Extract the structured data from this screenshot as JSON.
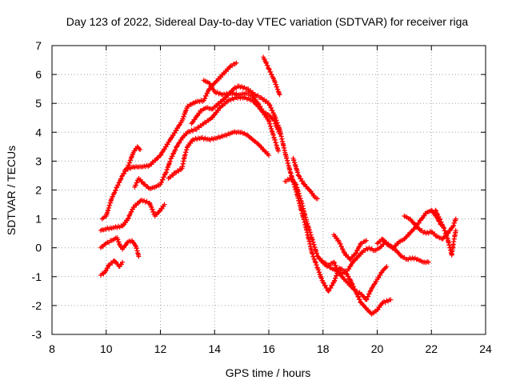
{
  "chart_data": {
    "type": "scatter",
    "title": "Day 123 of 2022, Sidereal Day-to-day VTEC variation (SDTVAR) for receiver riga",
    "xlabel": "GPS time / hours",
    "ylabel": "SDTVAR / TECUs",
    "xlim": [
      8,
      24
    ],
    "ylim": [
      -3,
      7
    ],
    "xticks": [
      8,
      10,
      12,
      14,
      16,
      18,
      20,
      22,
      24
    ],
    "yticks": [
      -3,
      -2,
      -1,
      0,
      1,
      2,
      3,
      4,
      5,
      6,
      7
    ],
    "grid": true,
    "marker": "+",
    "color": "#ff0000",
    "series": [
      {
        "name": "track-1",
        "points": [
          [
            9.85,
            1.0
          ],
          [
            10.0,
            1.1
          ],
          [
            10.2,
            1.7
          ],
          [
            10.4,
            2.1
          ],
          [
            10.6,
            2.5
          ],
          [
            10.8,
            2.8
          ],
          [
            11.0,
            3.3
          ],
          [
            11.15,
            3.5
          ],
          [
            11.25,
            3.4
          ]
        ]
      },
      {
        "name": "track-2",
        "points": [
          [
            9.8,
            0.6
          ],
          [
            10.0,
            0.65
          ],
          [
            10.3,
            0.7
          ],
          [
            10.6,
            0.75
          ],
          [
            10.8,
            1.0
          ],
          [
            11.0,
            1.4
          ],
          [
            11.3,
            1.65
          ],
          [
            11.6,
            1.55
          ],
          [
            11.8,
            1.1
          ],
          [
            12.0,
            1.3
          ],
          [
            12.15,
            1.5
          ]
        ]
      },
      {
        "name": "track-3",
        "points": [
          [
            9.8,
            0.0
          ],
          [
            10.0,
            0.15
          ],
          [
            10.2,
            0.25
          ],
          [
            10.4,
            0.35
          ],
          [
            10.5,
            0.1
          ],
          [
            10.6,
            -0.05
          ],
          [
            10.8,
            0.2
          ],
          [
            10.95,
            0.25
          ],
          [
            11.1,
            0.05
          ],
          [
            11.2,
            -0.3
          ]
        ]
      },
      {
        "name": "track-4",
        "points": [
          [
            9.8,
            -0.95
          ],
          [
            9.95,
            -0.85
          ],
          [
            10.1,
            -0.6
          ],
          [
            10.3,
            -0.45
          ],
          [
            10.5,
            -0.65
          ],
          [
            10.6,
            -0.5
          ]
        ]
      },
      {
        "name": "track-5",
        "points": [
          [
            10.7,
            2.7
          ],
          [
            11.0,
            2.8
          ],
          [
            11.3,
            2.8
          ],
          [
            11.6,
            2.85
          ],
          [
            12.0,
            3.2
          ],
          [
            12.4,
            3.8
          ],
          [
            12.8,
            4.4
          ],
          [
            13.0,
            4.9
          ],
          [
            13.3,
            5.05
          ],
          [
            13.6,
            5.1
          ],
          [
            13.8,
            5.5
          ],
          [
            14.0,
            5.7
          ],
          [
            14.3,
            6.0
          ],
          [
            14.6,
            6.3
          ],
          [
            14.8,
            6.4
          ]
        ]
      },
      {
        "name": "track-6",
        "points": [
          [
            11.05,
            2.1
          ],
          [
            11.2,
            2.4
          ],
          [
            11.4,
            2.2
          ],
          [
            11.6,
            2.05
          ],
          [
            11.8,
            2.1
          ],
          [
            12.0,
            2.2
          ],
          [
            12.2,
            2.6
          ],
          [
            12.4,
            3.1
          ],
          [
            12.6,
            3.5
          ],
          [
            12.8,
            3.8
          ],
          [
            13.0,
            4.0
          ],
          [
            13.3,
            4.1
          ],
          [
            13.6,
            4.3
          ],
          [
            13.9,
            4.5
          ],
          [
            14.2,
            4.85
          ],
          [
            14.5,
            5.1
          ],
          [
            14.8,
            5.2
          ],
          [
            15.1,
            5.2
          ],
          [
            15.4,
            5.1
          ],
          [
            15.7,
            4.8
          ],
          [
            16.0,
            4.4
          ],
          [
            16.2,
            3.8
          ],
          [
            16.35,
            3.35
          ]
        ]
      },
      {
        "name": "track-7",
        "points": [
          [
            12.3,
            2.4
          ],
          [
            12.55,
            2.6
          ],
          [
            12.8,
            2.75
          ],
          [
            12.9,
            3.2
          ],
          [
            13.0,
            3.5
          ],
          [
            13.2,
            3.75
          ],
          [
            13.5,
            3.8
          ],
          [
            13.8,
            3.75
          ],
          [
            14.1,
            3.8
          ],
          [
            14.4,
            3.9
          ],
          [
            14.7,
            4.0
          ],
          [
            15.0,
            4.0
          ],
          [
            15.2,
            3.9
          ],
          [
            15.4,
            3.75
          ],
          [
            15.6,
            3.6
          ],
          [
            15.8,
            3.4
          ],
          [
            16.0,
            3.2
          ]
        ]
      },
      {
        "name": "track-8",
        "points": [
          [
            13.15,
            4.3
          ],
          [
            13.3,
            4.5
          ],
          [
            13.5,
            4.75
          ],
          [
            13.7,
            4.85
          ],
          [
            13.9,
            4.8
          ],
          [
            14.1,
            4.95
          ],
          [
            14.4,
            5.2
          ],
          [
            14.7,
            5.5
          ],
          [
            14.9,
            5.6
          ],
          [
            15.2,
            5.5
          ],
          [
            15.5,
            5.3
          ],
          [
            15.7,
            5.2
          ],
          [
            16.0,
            5.0
          ],
          [
            16.2,
            4.6
          ],
          [
            16.4,
            4.1
          ],
          [
            16.6,
            3.3
          ],
          [
            16.8,
            2.6
          ],
          [
            17.0,
            2.0
          ],
          [
            17.2,
            1.3
          ],
          [
            17.4,
            0.6
          ],
          [
            17.6,
            -0.2
          ],
          [
            17.8,
            -0.7
          ],
          [
            18.0,
            -1.2
          ],
          [
            18.2,
            -1.5
          ],
          [
            18.4,
            -1.2
          ],
          [
            18.6,
            -0.7
          ],
          [
            18.8,
            -0.8
          ],
          [
            19.0,
            -1.1
          ],
          [
            19.2,
            -1.5
          ],
          [
            19.4,
            -1.9
          ],
          [
            19.6,
            -2.1
          ],
          [
            19.8,
            -2.3
          ],
          [
            20.0,
            -2.15
          ],
          [
            20.2,
            -1.9
          ],
          [
            20.5,
            -1.8
          ]
        ]
      },
      {
        "name": "track-9",
        "points": [
          [
            13.6,
            5.8
          ],
          [
            13.8,
            5.7
          ],
          [
            14.0,
            5.4
          ],
          [
            14.3,
            5.3
          ],
          [
            14.6,
            5.35
          ],
          [
            14.9,
            5.3
          ],
          [
            15.2,
            5.35
          ],
          [
            15.4,
            5.25
          ],
          [
            15.6,
            5.0
          ],
          [
            15.8,
            4.7
          ],
          [
            16.0,
            4.6
          ],
          [
            16.2,
            4.4
          ],
          [
            16.4,
            3.95
          ]
        ]
      },
      {
        "name": "track-10",
        "points": [
          [
            15.8,
            6.6
          ],
          [
            16.0,
            6.2
          ],
          [
            16.2,
            5.8
          ],
          [
            16.4,
            5.3
          ]
        ]
      },
      {
        "name": "track-11",
        "points": [
          [
            16.6,
            2.3
          ],
          [
            16.8,
            2.4
          ],
          [
            17.0,
            2.2
          ],
          [
            17.2,
            1.6
          ],
          [
            17.4,
            0.9
          ],
          [
            17.6,
            0.3
          ],
          [
            17.8,
            -0.3
          ],
          [
            18.0,
            -0.5
          ],
          [
            18.2,
            -0.6
          ],
          [
            18.4,
            -0.5
          ],
          [
            18.6,
            -0.9
          ],
          [
            18.8,
            -1.1
          ],
          [
            19.0,
            -1.3
          ],
          [
            19.2,
            -1.5
          ],
          [
            19.4,
            -1.6
          ],
          [
            19.6,
            -1.8
          ],
          [
            19.8,
            -1.4
          ],
          [
            20.0,
            -1.1
          ],
          [
            20.2,
            -0.8
          ],
          [
            20.35,
            -0.65
          ]
        ]
      },
      {
        "name": "track-12",
        "points": [
          [
            16.9,
            3.1
          ],
          [
            17.0,
            2.8
          ],
          [
            17.1,
            2.5
          ],
          [
            17.3,
            2.2
          ],
          [
            17.5,
            2.0
          ],
          [
            17.7,
            1.75
          ],
          [
            17.8,
            1.7
          ]
        ]
      },
      {
        "name": "track-13",
        "points": [
          [
            17.9,
            -0.4
          ],
          [
            18.1,
            -0.6
          ],
          [
            18.3,
            -0.7
          ],
          [
            18.5,
            -0.8
          ],
          [
            18.7,
            -0.9
          ],
          [
            18.9,
            -0.8
          ],
          [
            19.1,
            -0.5
          ],
          [
            19.3,
            -0.3
          ],
          [
            19.5,
            -0.1
          ],
          [
            19.7,
            0.0
          ],
          [
            19.9,
            -0.1
          ],
          [
            20.1,
            0.0
          ],
          [
            20.3,
            0.2
          ],
          [
            20.5,
            0.05
          ],
          [
            20.7,
            -0.1
          ],
          [
            20.9,
            -0.3
          ],
          [
            21.1,
            -0.4
          ],
          [
            21.3,
            -0.35
          ],
          [
            21.5,
            -0.4
          ],
          [
            21.7,
            -0.5
          ],
          [
            21.9,
            -0.5
          ]
        ]
      },
      {
        "name": "track-14",
        "points": [
          [
            18.4,
            0.45
          ],
          [
            18.6,
            0.2
          ],
          [
            18.8,
            -0.2
          ],
          [
            19.0,
            -0.4
          ],
          [
            19.2,
            -0.2
          ],
          [
            19.4,
            0.15
          ],
          [
            19.6,
            0.25
          ]
        ]
      },
      {
        "name": "track-15",
        "points": [
          [
            20.0,
            0.15
          ],
          [
            20.2,
            0.3
          ],
          [
            20.4,
            0.1
          ],
          [
            20.6,
            0.0
          ],
          [
            20.8,
            0.2
          ],
          [
            21.0,
            0.3
          ],
          [
            21.2,
            0.5
          ],
          [
            21.4,
            0.7
          ],
          [
            21.6,
            0.95
          ],
          [
            21.8,
            1.2
          ],
          [
            22.0,
            1.3
          ],
          [
            22.2,
            1.05
          ],
          [
            22.35,
            0.8
          ]
        ]
      },
      {
        "name": "track-16",
        "points": [
          [
            21.0,
            1.1
          ],
          [
            21.2,
            1.0
          ],
          [
            21.4,
            0.8
          ],
          [
            21.6,
            0.6
          ],
          [
            21.8,
            0.5
          ],
          [
            22.0,
            0.55
          ],
          [
            22.2,
            0.4
          ],
          [
            22.4,
            0.3
          ],
          [
            22.6,
            0.5
          ],
          [
            22.8,
            0.75
          ],
          [
            22.9,
            1.0
          ]
        ]
      },
      {
        "name": "track-17",
        "points": [
          [
            22.15,
            1.3
          ],
          [
            22.3,
            1.0
          ],
          [
            22.45,
            0.7
          ],
          [
            22.6,
            0.3
          ],
          [
            22.75,
            -0.25
          ],
          [
            22.8,
            0.1
          ],
          [
            22.9,
            0.6
          ]
        ]
      }
    ]
  }
}
